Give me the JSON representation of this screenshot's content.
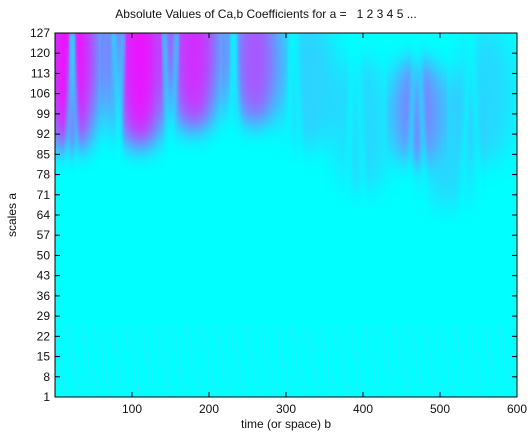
{
  "chart_data": {
    "type": "heatmap",
    "title": "Absolute Values of Ca,b Coefficients for a =   1 2 3 4 5 ...",
    "xlabel": "time (or space) b",
    "ylabel": "scales a",
    "xlim": [
      0,
      600
    ],
    "ylim": [
      1,
      127
    ],
    "x_ticks": [
      "100",
      "200",
      "300",
      "400",
      "500",
      "600"
    ],
    "y_ticks": [
      "1",
      "8",
      "15",
      "22",
      "29",
      "36",
      "43",
      "50",
      "57",
      "64",
      "71",
      "78",
      "85",
      "92",
      "99",
      "106",
      "113",
      "120",
      "127"
    ],
    "colormap": "cool",
    "colors": {
      "low": "#00ffff",
      "high": "#ff00ff"
    },
    "hotspots": [
      {
        "x": 20,
        "y": 120,
        "magnitude": 1.0
      },
      {
        "x": 110,
        "y": 120,
        "magnitude": 0.95
      },
      {
        "x": 180,
        "y": 122,
        "magnitude": 0.8
      },
      {
        "x": 260,
        "y": 118,
        "magnitude": 0.55
      },
      {
        "x": 470,
        "y": 100,
        "magnitude": 0.35
      }
    ]
  }
}
